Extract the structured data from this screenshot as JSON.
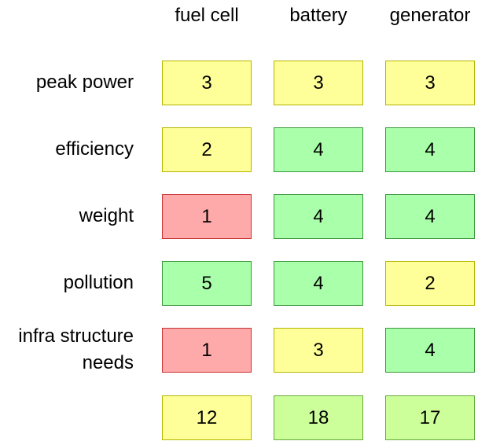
{
  "columns": [
    "fuel cell",
    "battery",
    "generator"
  ],
  "rows": [
    {
      "label": "peak power",
      "scores": [
        3,
        3,
        3
      ],
      "colors": [
        "#ffff99",
        "#ffff99",
        "#ffff99"
      ]
    },
    {
      "label": "efficiency",
      "scores": [
        2,
        4,
        4
      ],
      "colors": [
        "#ffff99",
        "#aaffaa",
        "#aaffaa"
      ]
    },
    {
      "label": "weight",
      "scores": [
        1,
        4,
        4
      ],
      "colors": [
        "#ffaaaa",
        "#aaffaa",
        "#aaffaa"
      ]
    },
    {
      "label": "pollution",
      "scores": [
        5,
        4,
        2
      ],
      "colors": [
        "#aaffaa",
        "#aaffaa",
        "#ffff99"
      ]
    },
    {
      "label": "infra structure needs",
      "scores": [
        1,
        3,
        4
      ],
      "colors": [
        "#ffaaaa",
        "#ffff99",
        "#aaffaa"
      ]
    }
  ],
  "totals": {
    "scores": [
      12,
      18,
      17
    ],
    "colors": [
      "#ffff99",
      "#ccff99",
      "#ccff99"
    ]
  }
}
